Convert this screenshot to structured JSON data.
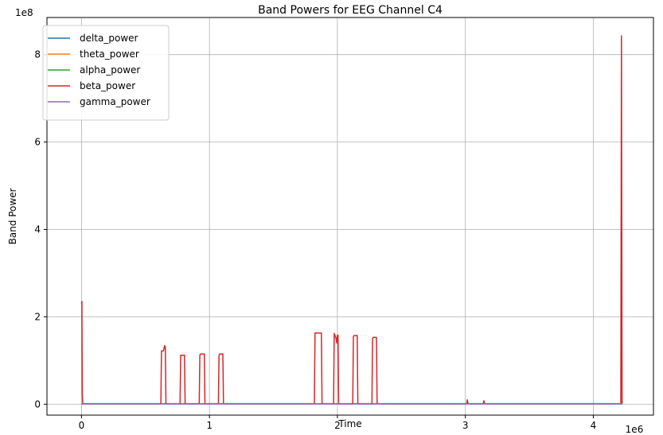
{
  "chart_data": {
    "type": "line",
    "title": "Band Powers for EEG Channel C4",
    "xlabel": "Time",
    "ylabel": "Band Power",
    "x_offset_label": "1e6",
    "y_offset_label": "1e8",
    "xlim": [
      -270000,
      4470000
    ],
    "ylim": [
      -25000000,
      885000000
    ],
    "x_ticks": [
      0,
      1000000,
      2000000,
      3000000,
      4000000
    ],
    "x_tick_labels": [
      "0",
      "1",
      "2",
      "3",
      "4"
    ],
    "y_ticks": [
      0,
      200000000,
      400000000,
      600000000,
      800000000
    ],
    "y_tick_labels": [
      "0",
      "2",
      "4",
      "6",
      "8"
    ],
    "grid": true,
    "legend_position": "upper-left",
    "series": [
      {
        "name": "delta_power",
        "color": "#1f77b4",
        "x": [
          0,
          4225000
        ],
        "y": [
          1200000,
          1200000
        ]
      },
      {
        "name": "theta_power",
        "color": "#ff7f0e",
        "x": [
          0,
          4225000
        ],
        "y": [
          1000000,
          1000000
        ]
      },
      {
        "name": "alpha_power",
        "color": "#2ca02c",
        "x": [
          0,
          4225000
        ],
        "y": [
          800000,
          800000
        ]
      },
      {
        "name": "beta_power",
        "color": "#d62728",
        "x": [
          0,
          3000,
          6000,
          10000,
          620000,
          625000,
          640000,
          645000,
          650000,
          655000,
          660000,
          770000,
          775000,
          780000,
          800000,
          805000,
          810000,
          920000,
          925000,
          930000,
          955000,
          960000,
          965000,
          1070000,
          1075000,
          1080000,
          1100000,
          1105000,
          1110000,
          1820000,
          1825000,
          1830000,
          1870000,
          1875000,
          1880000,
          1970000,
          1975000,
          1990000,
          1995000,
          2000000,
          2005000,
          2010000,
          2120000,
          2125000,
          2130000,
          2150000,
          2155000,
          2160000,
          2270000,
          2275000,
          2280000,
          2300000,
          2305000,
          2310000,
          3010000,
          3015000,
          3020000,
          3025000,
          3140000,
          3145000,
          3150000,
          4210000,
          4215000,
          4220000,
          4225000
        ],
        "y": [
          230000000,
          235000000,
          20000000,
          1000000,
          1000000,
          122000000,
          122000000,
          128000000,
          134000000,
          130000000,
          1000000,
          1000000,
          112000000,
          112000000,
          112000000,
          112000000,
          1000000,
          1000000,
          112000000,
          115000000,
          115000000,
          115000000,
          1000000,
          1000000,
          112000000,
          115000000,
          115000000,
          115000000,
          1000000,
          1000000,
          163000000,
          163000000,
          163000000,
          163000000,
          1000000,
          1000000,
          162000000,
          150000000,
          140000000,
          158000000,
          158000000,
          1000000,
          1000000,
          155000000,
          157000000,
          157000000,
          157000000,
          1000000,
          1000000,
          150000000,
          153000000,
          153000000,
          153000000,
          1000000,
          1000000,
          10000000,
          1000000,
          1000000,
          1000000,
          8000000,
          1000000,
          1000000,
          1000000,
          843000000,
          1000000
        ]
      },
      {
        "name": "gamma_power",
        "color": "#9467bd",
        "x": [
          0,
          4225000
        ],
        "y": [
          400000,
          400000
        ]
      }
    ]
  }
}
